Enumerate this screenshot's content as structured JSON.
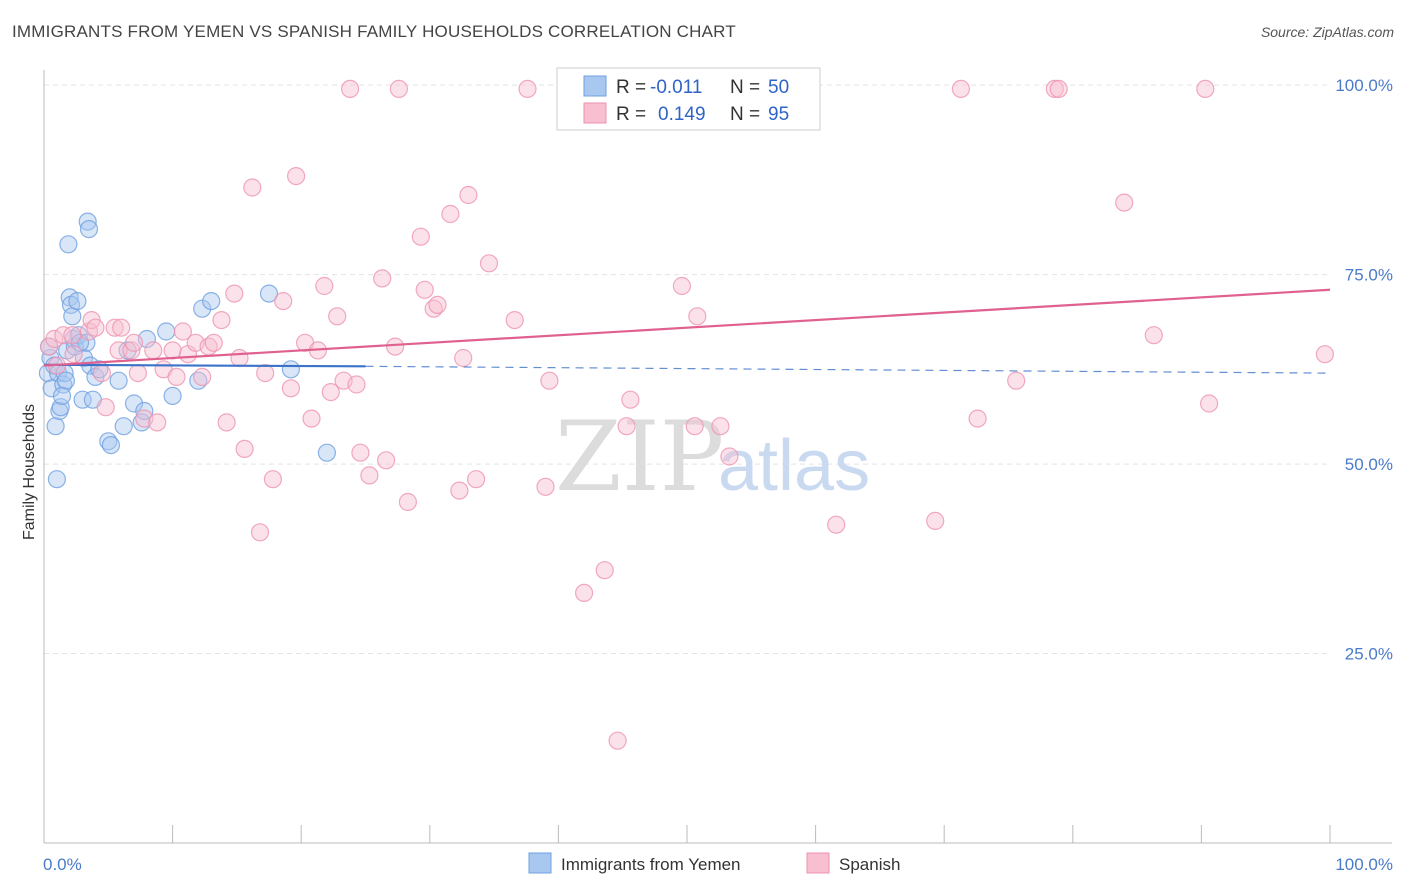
{
  "title": "IMMIGRANTS FROM YEMEN VS SPANISH FAMILY HOUSEHOLDS CORRELATION CHART",
  "source": "Source: ZipAtlas.com",
  "watermark": {
    "zip": "ZIP",
    "atlas": "atlas"
  },
  "legend_box": {
    "rows": [
      {
        "r_label": "R =",
        "r_value": "-0.011",
        "n_label": "N =",
        "n_value": "50",
        "color": "#a8c8f0",
        "stroke": "#6fa0e0"
      },
      {
        "r_label": "R =",
        "r_value": "0.149",
        "n_label": "N =",
        "n_value": "95",
        "color": "#f7bfd0",
        "stroke": "#ee93b0"
      }
    ]
  },
  "bottom_legend": [
    {
      "label": "Immigrants from Yemen",
      "color": "#a8c8f0",
      "stroke": "#6fa0e0"
    },
    {
      "label": "Spanish",
      "color": "#f7bfd0",
      "stroke": "#ee93b0"
    }
  ],
  "chart_data": {
    "type": "scatter",
    "title": "IMMIGRANTS FROM YEMEN VS SPANISH FAMILY HOUSEHOLDS CORRELATION CHART",
    "xlabel": "",
    "ylabel": "Family Households",
    "xlim": [
      0,
      100
    ],
    "ylim": [
      0,
      102
    ],
    "x_tick_labels": [
      "0.0%",
      "100.0%"
    ],
    "y_tick_labels": [
      {
        "value": 25,
        "label": "25.0%"
      },
      {
        "value": 50,
        "label": "50.0%"
      },
      {
        "value": 75,
        "label": "75.0%"
      },
      {
        "value": 100,
        "label": "100.0%"
      }
    ],
    "grid": true,
    "series": [
      {
        "name": "Immigrants from Yemen",
        "color": "#6fa0e0",
        "fill": "#a8c8f0",
        "trend": {
          "x0": 0,
          "y0": 63.1,
          "x1": 25,
          "y1": 62.9,
          "dashed_to_x": 100,
          "dashed_to_y": 62.0,
          "color": "#3b73c8"
        },
        "points": [
          [
            0.3,
            62.0
          ],
          [
            0.5,
            64.0
          ],
          [
            0.6,
            60.0
          ],
          [
            0.8,
            63.0
          ],
          [
            0.9,
            55.0
          ],
          [
            1.0,
            48.0
          ],
          [
            1.1,
            62.0
          ],
          [
            1.2,
            57.0
          ],
          [
            1.3,
            57.5
          ],
          [
            1.5,
            60.5
          ],
          [
            1.6,
            62.0
          ],
          [
            1.7,
            61.0
          ],
          [
            1.8,
            65.0
          ],
          [
            1.9,
            79.0
          ],
          [
            2.0,
            72.0
          ],
          [
            2.1,
            71.0
          ],
          [
            2.2,
            69.5
          ],
          [
            2.3,
            66.5
          ],
          [
            2.4,
            65.5
          ],
          [
            2.6,
            71.5
          ],
          [
            2.7,
            67.0
          ],
          [
            3.0,
            58.5
          ],
          [
            3.1,
            64.0
          ],
          [
            3.3,
            66.0
          ],
          [
            3.4,
            82.0
          ],
          [
            3.5,
            81.0
          ],
          [
            3.6,
            63.0
          ],
          [
            3.8,
            58.5
          ],
          [
            4.0,
            61.5
          ],
          [
            4.3,
            62.5
          ],
          [
            5.0,
            53.0
          ],
          [
            5.2,
            52.5
          ],
          [
            5.8,
            61.0
          ],
          [
            6.2,
            55.0
          ],
          [
            6.5,
            65.0
          ],
          [
            7.0,
            58.0
          ],
          [
            7.6,
            55.5
          ],
          [
            7.8,
            57.0
          ],
          [
            8.0,
            66.5
          ],
          [
            9.5,
            67.5
          ],
          [
            10.0,
            59.0
          ],
          [
            12.0,
            61.0
          ],
          [
            12.3,
            70.5
          ],
          [
            13.0,
            71.5
          ],
          [
            17.5,
            72.5
          ],
          [
            19.2,
            62.5
          ],
          [
            22.0,
            51.5
          ],
          [
            0.4,
            65.5
          ],
          [
            1.4,
            59.0
          ],
          [
            2.8,
            66.0
          ]
        ]
      },
      {
        "name": "Spanish",
        "color": "#ee93b0",
        "fill": "#f7bfd0",
        "trend": {
          "x0": 0,
          "y0": 63.0,
          "x1": 100,
          "y1": 73.0,
          "color": "#e0608f"
        },
        "points": [
          [
            0.4,
            65.5
          ],
          [
            0.8,
            66.5
          ],
          [
            1.0,
            63.0
          ],
          [
            1.5,
            67.0
          ],
          [
            2.2,
            67.0
          ],
          [
            2.3,
            64.5
          ],
          [
            3.5,
            67.5
          ],
          [
            3.7,
            69.0
          ],
          [
            4.0,
            68.0
          ],
          [
            4.5,
            62.0
          ],
          [
            4.8,
            57.5
          ],
          [
            5.5,
            68.0
          ],
          [
            5.8,
            65.0
          ],
          [
            6.0,
            68.0
          ],
          [
            6.8,
            65.0
          ],
          [
            7.0,
            66.0
          ],
          [
            7.3,
            62.0
          ],
          [
            7.8,
            56.0
          ],
          [
            8.5,
            65.0
          ],
          [
            8.8,
            55.5
          ],
          [
            9.3,
            62.5
          ],
          [
            10.0,
            65.0
          ],
          [
            10.3,
            61.5
          ],
          [
            10.8,
            67.5
          ],
          [
            11.2,
            64.5
          ],
          [
            11.8,
            66.0
          ],
          [
            12.3,
            61.5
          ],
          [
            12.8,
            65.5
          ],
          [
            13.2,
            66.0
          ],
          [
            13.8,
            69.0
          ],
          [
            14.2,
            55.5
          ],
          [
            14.8,
            72.5
          ],
          [
            15.2,
            64.0
          ],
          [
            15.6,
            52.0
          ],
          [
            16.2,
            86.5
          ],
          [
            16.8,
            41.0
          ],
          [
            17.2,
            62.0
          ],
          [
            17.8,
            48.0
          ],
          [
            18.6,
            71.5
          ],
          [
            19.2,
            60.0
          ],
          [
            19.6,
            88.0
          ],
          [
            20.3,
            66.0
          ],
          [
            20.8,
            56.0
          ],
          [
            21.3,
            65.0
          ],
          [
            21.8,
            73.5
          ],
          [
            22.3,
            59.5
          ],
          [
            22.8,
            69.5
          ],
          [
            23.3,
            61.0
          ],
          [
            23.8,
            99.5
          ],
          [
            24.3,
            60.5
          ],
          [
            24.6,
            51.5
          ],
          [
            25.3,
            48.5
          ],
          [
            26.3,
            74.5
          ],
          [
            26.6,
            50.5
          ],
          [
            27.3,
            65.5
          ],
          [
            27.6,
            99.5
          ],
          [
            28.3,
            45.0
          ],
          [
            29.3,
            80.0
          ],
          [
            29.6,
            73.0
          ],
          [
            30.3,
            70.5
          ],
          [
            30.6,
            71.0
          ],
          [
            31.6,
            83.0
          ],
          [
            32.3,
            46.5
          ],
          [
            32.6,
            64.0
          ],
          [
            33.0,
            85.5
          ],
          [
            33.6,
            48.0
          ],
          [
            34.6,
            76.5
          ],
          [
            36.6,
            69.0
          ],
          [
            37.6,
            99.5
          ],
          [
            39.0,
            47.0
          ],
          [
            39.3,
            61.0
          ],
          [
            40.6,
            98.5
          ],
          [
            42.0,
            33.0
          ],
          [
            43.6,
            36.0
          ],
          [
            44.6,
            13.5
          ],
          [
            45.3,
            55.0
          ],
          [
            45.6,
            58.5
          ],
          [
            48.3,
            99.5
          ],
          [
            49.6,
            73.5
          ],
          [
            50.6,
            55.0
          ],
          [
            50.8,
            69.5
          ],
          [
            52.6,
            55.0
          ],
          [
            53.3,
            51.0
          ],
          [
            61.6,
            42.0
          ],
          [
            69.3,
            42.5
          ],
          [
            71.3,
            99.5
          ],
          [
            72.6,
            56.0
          ],
          [
            75.6,
            61.0
          ],
          [
            78.6,
            99.5
          ],
          [
            78.9,
            99.5
          ],
          [
            84.0,
            84.5
          ],
          [
            86.3,
            67.0
          ],
          [
            90.3,
            99.5
          ],
          [
            90.6,
            58.0
          ],
          [
            99.6,
            64.5
          ]
        ]
      }
    ]
  }
}
